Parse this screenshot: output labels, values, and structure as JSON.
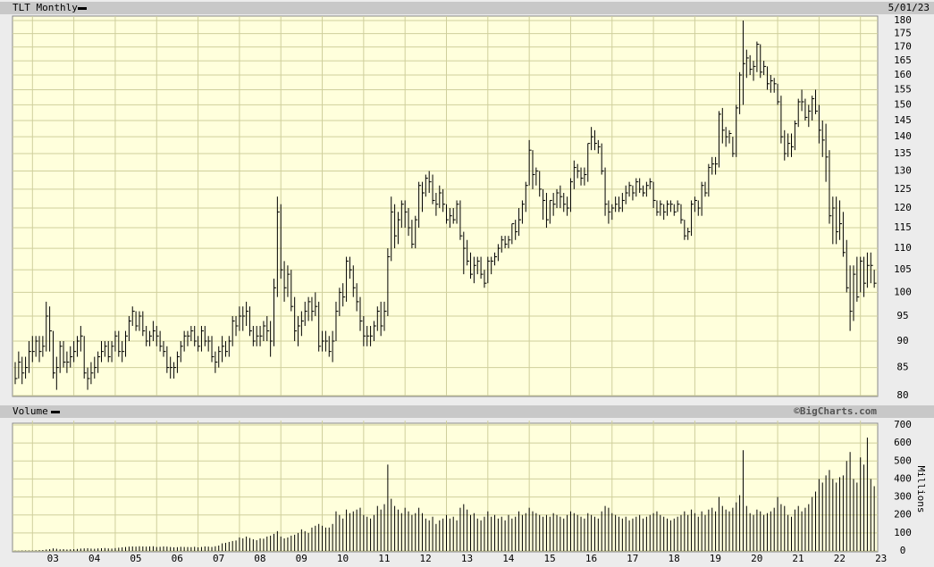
{
  "chart_data": [
    {
      "type": "ohlc",
      "title": "TLT Monthly",
      "date": "5/01/23",
      "log": true,
      "grid": true,
      "color": "#000000",
      "ylim": [
        80,
        180
      ],
      "yticks": [
        80,
        85,
        90,
        95,
        100,
        105,
        110,
        115,
        120,
        125,
        130,
        135,
        140,
        145,
        150,
        155,
        160,
        165,
        170,
        175,
        180
      ],
      "high": [
        86,
        88,
        87,
        87,
        90,
        91,
        91,
        91,
        91,
        98,
        97,
        92,
        87,
        90,
        90,
        88,
        89,
        90,
        91,
        93,
        91,
        85,
        86,
        87,
        88,
        90,
        90,
        90,
        90,
        92,
        92,
        90,
        92,
        95,
        97,
        96,
        96,
        96,
        93,
        92,
        94,
        93,
        92,
        90,
        89,
        87,
        86,
        88,
        90,
        92,
        92,
        93,
        93,
        91,
        93,
        93,
        91,
        91,
        88,
        89,
        91,
        90,
        91,
        95,
        95,
        97,
        97,
        98,
        97,
        93,
        93,
        93,
        94,
        95,
        94,
        103,
        123,
        121,
        107,
        106,
        105,
        99,
        95,
        96,
        98,
        99,
        99,
        100,
        98,
        92,
        92,
        91,
        92,
        98,
        101,
        102,
        108,
        108,
        106,
        102,
        99,
        95,
        93,
        93,
        94,
        97,
        98,
        98,
        110,
        123,
        121,
        119,
        122,
        122,
        120,
        117,
        118,
        127,
        127,
        129,
        130,
        129,
        124,
        126,
        125,
        121,
        120,
        120,
        122,
        122,
        114,
        112,
        109,
        108,
        108,
        108,
        105,
        108,
        108,
        109,
        111,
        113,
        113,
        113,
        116,
        117,
        120,
        122,
        127,
        139,
        136,
        131,
        130,
        125,
        124,
        122,
        124,
        125,
        126,
        124,
        123,
        128,
        133,
        132,
        131,
        131,
        138,
        143,
        142,
        139,
        138,
        131,
        122,
        121,
        123,
        123,
        124,
        126,
        127,
        126,
        128,
        128,
        126,
        127,
        128,
        127,
        122,
        122,
        121,
        122,
        122,
        121,
        122,
        121,
        117,
        115,
        122,
        123,
        122,
        127,
        127,
        132,
        134,
        134,
        148,
        149,
        143,
        142,
        140,
        150,
        161,
        180,
        169,
        167,
        165,
        172,
        171,
        165,
        163,
        160,
        159,
        157,
        153,
        142,
        141,
        141,
        145,
        152,
        155,
        152,
        150,
        153,
        155,
        150,
        145,
        144,
        136,
        123,
        123,
        122,
        119,
        112,
        106,
        106,
        108,
        108,
        108,
        109,
        109,
        105
      ],
      "low": [
        82,
        83,
        82,
        83,
        84,
        86,
        87,
        86,
        87,
        88,
        88,
        83,
        81,
        84,
        85,
        84,
        85,
        86,
        87,
        88,
        83,
        81,
        82,
        83,
        84,
        86,
        87,
        86,
        86,
        88,
        87,
        86,
        87,
        90,
        93,
        92,
        92,
        91,
        89,
        89,
        90,
        89,
        88,
        87,
        84,
        83,
        83,
        84,
        86,
        88,
        89,
        90,
        89,
        88,
        88,
        89,
        88,
        86,
        84,
        85,
        86,
        87,
        87,
        89,
        91,
        92,
        92,
        93,
        91,
        89,
        89,
        89,
        90,
        90,
        87,
        89,
        99,
        103,
        98,
        99,
        96,
        90,
        89,
        91,
        93,
        94,
        94,
        95,
        88,
        88,
        88,
        87,
        86,
        90,
        95,
        97,
        98,
        103,
        99,
        96,
        92,
        89,
        89,
        89,
        90,
        92,
        91,
        92,
        95,
        107,
        110,
        111,
        115,
        115,
        113,
        110,
        110,
        115,
        119,
        123,
        124,
        121,
        118,
        120,
        119,
        116,
        115,
        116,
        116,
        112,
        104,
        106,
        103,
        102,
        104,
        103,
        101,
        102,
        104,
        106,
        107,
        109,
        110,
        110,
        111,
        112,
        113,
        116,
        119,
        126,
        125,
        126,
        123,
        117,
        115,
        116,
        118,
        120,
        120,
        119,
        118,
        119,
        125,
        128,
        126,
        126,
        127,
        136,
        136,
        135,
        129,
        118,
        116,
        117,
        119,
        119,
        119,
        121,
        123,
        122,
        123,
        124,
        123,
        123,
        125,
        120,
        118,
        118,
        117,
        118,
        119,
        118,
        119,
        116,
        112,
        112,
        113,
        119,
        118,
        118,
        123,
        123,
        129,
        129,
        131,
        138,
        137,
        138,
        134,
        134,
        147,
        150,
        159,
        160,
        158,
        161,
        159,
        160,
        155,
        154,
        154,
        150,
        138,
        133,
        134,
        134,
        136,
        143,
        148,
        145,
        143,
        145,
        147,
        138,
        134,
        127,
        116,
        111,
        111,
        112,
        108,
        100,
        92,
        94,
        98,
        100,
        99,
        101,
        102,
        101
      ],
      "close": [
        83,
        86,
        84,
        85,
        88,
        88,
        90,
        88,
        89,
        95,
        92,
        84,
        85,
        89,
        86,
        86,
        87,
        88,
        90,
        91,
        84,
        83,
        84,
        85,
        87,
        88,
        89,
        87,
        89,
        91,
        88,
        88,
        91,
        94,
        96,
        93,
        95,
        92,
        90,
        91,
        92,
        91,
        89,
        88,
        85,
        85,
        85,
        87,
        89,
        91,
        91,
        92,
        90,
        89,
        92,
        90,
        90,
        87,
        86,
        88,
        89,
        88,
        90,
        94,
        93,
        95,
        95,
        96,
        92,
        90,
        91,
        91,
        93,
        92,
        90,
        101,
        119,
        105,
        101,
        104,
        97,
        92,
        93,
        94,
        96,
        98,
        96,
        97,
        89,
        90,
        90,
        88,
        90,
        96,
        100,
        99,
        107,
        105,
        101,
        98,
        94,
        91,
        91,
        91,
        93,
        96,
        93,
        96,
        108,
        119,
        113,
        117,
        121,
        119,
        115,
        111,
        117,
        126,
        124,
        128,
        127,
        122,
        121,
        124,
        121,
        117,
        118,
        117,
        121,
        113,
        110,
        107,
        104,
        106,
        107,
        104,
        102,
        107,
        107,
        108,
        110,
        112,
        111,
        112,
        116,
        114,
        117,
        121,
        126,
        136,
        129,
        130,
        125,
        122,
        117,
        122,
        121,
        124,
        123,
        121,
        120,
        127,
        131,
        130,
        128,
        129,
        138,
        140,
        138,
        137,
        130,
        121,
        119,
        120,
        121,
        120,
        122,
        124,
        126,
        124,
        127,
        125,
        124,
        126,
        127,
        122,
        119,
        121,
        119,
        121,
        121,
        119,
        121,
        117,
        113,
        114,
        121,
        122,
        120,
        126,
        124,
        131,
        132,
        132,
        147,
        142,
        140,
        141,
        135,
        149,
        160,
        164,
        166,
        162,
        163,
        171,
        161,
        163,
        157,
        158,
        157,
        151,
        140,
        135,
        138,
        137,
        144,
        151,
        151,
        146,
        148,
        152,
        148,
        142,
        139,
        134,
        118,
        120,
        114,
        116,
        109,
        101,
        96,
        104,
        99,
        107,
        102,
        106,
        106,
        102
      ]
    },
    {
      "type": "bar",
      "title": "Volume",
      "source": "©BigCharts.com",
      "ylabel": "Millions",
      "grid": true,
      "color": "#000000",
      "ylim": [
        0,
        700
      ],
      "yticks": [
        0,
        100,
        200,
        300,
        400,
        500,
        600,
        700
      ],
      "xticks": [
        {
          "value": 5,
          "label": "03"
        },
        {
          "value": 17,
          "label": "04"
        },
        {
          "value": 29,
          "label": "05"
        },
        {
          "value": 41,
          "label": "06"
        },
        {
          "value": 53,
          "label": "07"
        },
        {
          "value": 65,
          "label": "08"
        },
        {
          "value": 77,
          "label": "09"
        },
        {
          "value": 89,
          "label": "10"
        },
        {
          "value": 101,
          "label": "11"
        },
        {
          "value": 113,
          "label": "12"
        },
        {
          "value": 125,
          "label": "13"
        },
        {
          "value": 137,
          "label": "14"
        },
        {
          "value": 149,
          "label": "15"
        },
        {
          "value": 161,
          "label": "16"
        },
        {
          "value": 173,
          "label": "17"
        },
        {
          "value": 185,
          "label": "18"
        },
        {
          "value": 197,
          "label": "19"
        },
        {
          "value": 209,
          "label": "20"
        },
        {
          "value": 221,
          "label": "21"
        },
        {
          "value": 233,
          "label": "22"
        },
        {
          "value": 245,
          "label": "23"
        }
      ],
      "values": [
        1,
        1,
        2,
        2,
        2,
        2,
        3,
        4,
        5,
        8,
        10,
        14,
        12,
        9,
        10,
        8,
        9,
        10,
        11,
        13,
        14,
        15,
        13,
        12,
        14,
        15,
        16,
        14,
        13,
        16,
        18,
        20,
        22,
        24,
        25,
        24,
        26,
        25,
        24,
        25,
        26,
        22,
        23,
        25,
        24,
        22,
        20,
        21,
        23,
        22,
        22,
        21,
        23,
        20,
        22,
        25,
        24,
        22,
        26,
        30,
        42,
        45,
        50,
        55,
        58,
        75,
        70,
        80,
        72,
        65,
        60,
        70,
        68,
        80,
        85,
        95,
        110,
        80,
        70,
        75,
        85,
        90,
        100,
        120,
        110,
        100,
        130,
        140,
        150,
        140,
        130,
        130,
        150,
        220,
        200,
        180,
        230,
        210,
        220,
        230,
        240,
        200,
        190,
        180,
        200,
        250,
        230,
        260,
        480,
        290,
        250,
        230,
        210,
        240,
        220,
        200,
        210,
        240,
        210,
        180,
        170,
        190,
        150,
        170,
        180,
        200,
        180,
        190,
        170,
        240,
        260,
        230,
        200,
        210,
        180,
        170,
        190,
        220,
        190,
        200,
        180,
        190,
        170,
        200,
        180,
        190,
        220,
        200,
        210,
        240,
        220,
        210,
        200,
        190,
        200,
        190,
        210,
        200,
        190,
        180,
        200,
        220,
        210,
        200,
        190,
        180,
        210,
        200,
        190,
        180,
        220,
        250,
        240,
        210,
        200,
        190,
        180,
        190,
        170,
        180,
        190,
        200,
        180,
        190,
        200,
        210,
        220,
        200,
        190,
        180,
        170,
        180,
        190,
        200,
        220,
        200,
        230,
        210,
        190,
        220,
        200,
        230,
        240,
        220,
        300,
        250,
        230,
        220,
        240,
        270,
        310,
        560,
        250,
        210,
        200,
        230,
        220,
        200,
        210,
        220,
        240,
        300,
        260,
        250,
        200,
        190,
        230,
        250,
        220,
        240,
        260,
        300,
        330,
        400,
        380,
        420,
        450,
        400,
        380,
        410,
        420,
        500,
        550,
        400,
        380,
        520,
        480,
        630,
        400,
        360
      ]
    }
  ]
}
